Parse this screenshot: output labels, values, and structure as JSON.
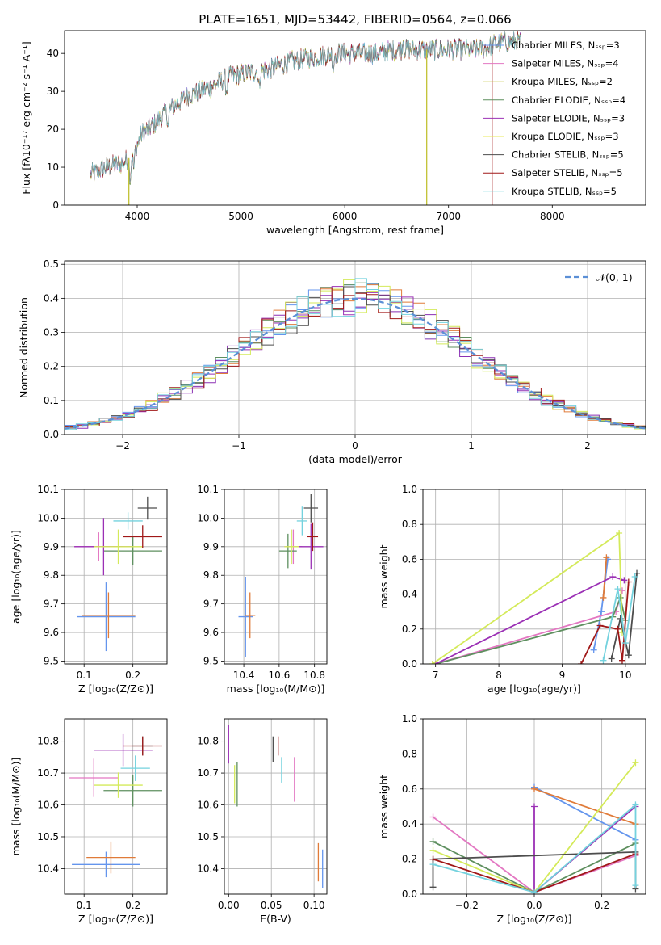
{
  "figure_title": "PLATE=1651, MJD=53442, FIBERID=0564, z=0.066",
  "colors": [
    "#6495ed",
    "#e07b39",
    "#8b2fb3",
    "#5e8f5f",
    "#9b30b5",
    "#d4ea5a",
    "#4d4d4d",
    "#a01818",
    "#74d2de"
  ],
  "chart_data": [
    {
      "id": "spectrum",
      "type": "line",
      "title": "PLATE=1651, MJD=53442, FIBERID=0564, z=0.066",
      "xlabel": "wavelength [Angstrom, rest frame]",
      "ylabel": "Flux [fλ10⁻¹⁷ erg cm⁻² s⁻¹ A⁻¹]",
      "xlim": [
        3300,
        8900
      ],
      "ylim": [
        0,
        46
      ],
      "xticks": [
        4000,
        5000,
        6000,
        7000,
        8000
      ],
      "yticks": [
        0,
        10,
        20,
        30,
        40
      ],
      "legend_position": "top-right",
      "series": [
        {
          "name": "Chabrier MILES, Nₛₛₚ=3",
          "color": "#6495ed"
        },
        {
          "name": "Salpeter MILES, Nₛₛₚ=4",
          "color": "#e377c2"
        },
        {
          "name": "Kroupa MILES, Nₛₛₚ=2",
          "color": "#bcbd22"
        },
        {
          "name": "Chabrier ELODIE, Nₛₛₚ=4",
          "color": "#5e8f5f"
        },
        {
          "name": "Salpeter ELODIE, Nₛₛₚ=3",
          "color": "#9b30b5"
        },
        {
          "name": "Kroupa ELODIE, Nₛₛₚ=3",
          "color": "#e8e85a"
        },
        {
          "name": "Chabrier STELIB, Nₛₛₚ=5",
          "color": "#4d4d4d"
        },
        {
          "name": "Salpeter STELIB, Nₛₛₚ=5",
          "color": "#a01818"
        },
        {
          "name": "Kroupa STELIB, Nₛₛₚ=5",
          "color": "#74d2de"
        }
      ],
      "continuum_points": [
        [
          3550,
          8
        ],
        [
          3700,
          10
        ],
        [
          3850,
          11
        ],
        [
          3950,
          13
        ],
        [
          4050,
          19
        ],
        [
          4150,
          21
        ],
        [
          4300,
          25
        ],
        [
          4500,
          29
        ],
        [
          4700,
          31
        ],
        [
          4900,
          34
        ],
        [
          5100,
          35
        ],
        [
          5300,
          36
        ],
        [
          5500,
          38
        ],
        [
          5700,
          39
        ],
        [
          5900,
          40
        ],
        [
          6100,
          40
        ],
        [
          6300,
          40
        ],
        [
          6500,
          41
        ],
        [
          6700,
          41
        ],
        [
          6900,
          41
        ],
        [
          7100,
          41
        ],
        [
          7300,
          41
        ],
        [
          7500,
          43
        ],
        [
          7700,
          43
        ]
      ]
    },
    {
      "id": "residuals",
      "type": "histogram",
      "xlabel": "(data-model)/error",
      "ylabel": "Normed distribution",
      "xlim": [
        -2.5,
        2.5
      ],
      "ylim": [
        0,
        0.51
      ],
      "xticks": [
        -2,
        -1,
        0,
        1,
        2
      ],
      "yticks": [
        0.0,
        0.1,
        0.2,
        0.3,
        0.4,
        0.5
      ],
      "legend": "𝒩(0, 1)",
      "legend_position": "top-right",
      "bin_width": 0.1
    },
    {
      "id": "age-vs-Z",
      "type": "errorbar",
      "xlabel": "Z [log₁₀(Z/Z⊙)]",
      "ylabel": "age  [log₁₀(age/yr)]",
      "xlim": [
        0.06,
        0.27
      ],
      "ylim": [
        9.49,
        10.1
      ],
      "xticks": [
        0.1,
        0.2
      ],
      "yticks": [
        9.5,
        9.6,
        9.7,
        9.8,
        9.9,
        10.0,
        10.1
      ],
      "points": [
        {
          "x": 0.145,
          "y": 9.655,
          "xerr": 0.06,
          "yerr": 0.12,
          "color": "#6495ed"
        },
        {
          "x": 0.15,
          "y": 9.66,
          "xerr": 0.055,
          "yerr": 0.08,
          "color": "#e07b39"
        },
        {
          "x": 0.13,
          "y": 9.9,
          "xerr": 0.05,
          "yerr": 0.05,
          "color": "#e377c2"
        },
        {
          "x": 0.2,
          "y": 9.885,
          "xerr": 0.06,
          "yerr": 0.05,
          "color": "#5e8f5f"
        },
        {
          "x": 0.14,
          "y": 9.9,
          "xerr": 0.06,
          "yerr": 0.1,
          "color": "#9b30b5"
        },
        {
          "x": 0.17,
          "y": 9.9,
          "xerr": 0.05,
          "yerr": 0.06,
          "color": "#d4ea5a"
        },
        {
          "x": 0.23,
          "y": 10.035,
          "xerr": 0.02,
          "yerr": 0.04,
          "color": "#4d4d4d"
        },
        {
          "x": 0.22,
          "y": 9.935,
          "xerr": 0.04,
          "yerr": 0.04,
          "color": "#a01818"
        },
        {
          "x": 0.19,
          "y": 9.99,
          "xerr": 0.03,
          "yerr": 0.03,
          "color": "#74d2de"
        }
      ]
    },
    {
      "id": "age-vs-mass",
      "type": "errorbar",
      "xlabel": "mass [log₁₀(M/M⊙)]",
      "ylabel": "",
      "xlim": [
        10.29,
        10.87
      ],
      "ylim": [
        9.49,
        10.1
      ],
      "xticks": [
        10.4,
        10.6,
        10.8
      ],
      "yticks": [
        9.5,
        9.6,
        9.7,
        9.8,
        9.9,
        10.0,
        10.1
      ],
      "points": [
        {
          "x": 10.41,
          "y": 9.655,
          "xerr": 0.04,
          "yerr": 0.14,
          "color": "#6495ed"
        },
        {
          "x": 10.435,
          "y": 9.66,
          "xerr": 0.03,
          "yerr": 0.08,
          "color": "#e07b39"
        },
        {
          "x": 10.68,
          "y": 9.9,
          "xerr": 0.05,
          "yerr": 0.06,
          "color": "#e377c2"
        },
        {
          "x": 10.65,
          "y": 9.885,
          "xerr": 0.05,
          "yerr": 0.06,
          "color": "#5e8f5f"
        },
        {
          "x": 10.78,
          "y": 9.9,
          "xerr": 0.07,
          "yerr": 0.08,
          "color": "#9b30b5"
        },
        {
          "x": 10.67,
          "y": 9.9,
          "xerr": 0.04,
          "yerr": 0.06,
          "color": "#d4ea5a"
        },
        {
          "x": 10.78,
          "y": 10.035,
          "xerr": 0.04,
          "yerr": 0.05,
          "color": "#4d4d4d"
        },
        {
          "x": 10.79,
          "y": 9.935,
          "xerr": 0.03,
          "yerr": 0.05,
          "color": "#a01818"
        },
        {
          "x": 10.73,
          "y": 9.99,
          "xerr": 0.03,
          "yerr": 0.05,
          "color": "#74d2de"
        }
      ]
    },
    {
      "id": "mass-weight-vs-age",
      "type": "line",
      "xlabel": "age  [log₁₀(age/yr)]",
      "ylabel": "mass weight",
      "xlim": [
        6.8,
        10.32
      ],
      "ylim": [
        0,
        1
      ],
      "xticks": [
        7,
        8,
        9,
        10
      ],
      "yticks": [
        0.0,
        0.2,
        0.4,
        0.6,
        0.8,
        1.0
      ],
      "series": [
        {
          "color": "#6495ed",
          "points": [
            [
              9.5,
              0.08
            ],
            [
              9.62,
              0.3
            ],
            [
              9.72,
              0.6
            ]
          ]
        },
        {
          "color": "#e07b39",
          "points": [
            [
              9.65,
              0.38
            ],
            [
              9.7,
              0.61
            ]
          ]
        },
        {
          "color": "#e377c2",
          "points": [
            [
              7.0,
              0.0
            ],
            [
              9.85,
              0.3
            ],
            [
              9.95,
              0.42
            ]
          ]
        },
        {
          "color": "#5e8f5f",
          "points": [
            [
              7.0,
              0.0
            ],
            [
              9.8,
              0.27
            ],
            [
              9.92,
              0.38
            ],
            [
              10.0,
              0.25
            ]
          ]
        },
        {
          "color": "#9b30b5",
          "points": [
            [
              7.0,
              0.0
            ],
            [
              9.8,
              0.5
            ],
            [
              9.98,
              0.48
            ]
          ]
        },
        {
          "color": "#d4ea5a",
          "points": [
            [
              6.95,
              0.0
            ],
            [
              9.9,
              0.75
            ],
            [
              9.95,
              0.18
            ]
          ]
        },
        {
          "color": "#4d4d4d",
          "points": [
            [
              9.78,
              0.03
            ],
            [
              9.92,
              0.26
            ],
            [
              10.05,
              0.05
            ],
            [
              10.18,
              0.52
            ]
          ]
        },
        {
          "color": "#a01818",
          "points": [
            [
              9.3,
              0.0
            ],
            [
              9.6,
              0.22
            ],
            [
              9.88,
              0.2
            ],
            [
              9.95,
              0.02
            ],
            [
              10.05,
              0.47
            ]
          ]
        },
        {
          "color": "#74d2de",
          "points": [
            [
              9.65,
              0.02
            ],
            [
              9.88,
              0.43
            ],
            [
              10.0,
              0.12
            ],
            [
              10.15,
              0.5
            ]
          ]
        }
      ]
    },
    {
      "id": "mass-vs-Z",
      "type": "errorbar",
      "xlabel": "Z [log₁₀(Z/Z⊙)]",
      "ylabel": "mass [log₁₀(M/M⊙)]",
      "xlim": [
        0.06,
        0.27
      ],
      "ylim": [
        10.32,
        10.87
      ],
      "xticks": [
        0.1,
        0.2
      ],
      "yticks": [
        10.4,
        10.5,
        10.6,
        10.7,
        10.8
      ],
      "points": [
        {
          "x": 0.145,
          "y": 10.413,
          "xerr": 0.07,
          "yerr": 0.04,
          "color": "#6495ed"
        },
        {
          "x": 0.155,
          "y": 10.435,
          "xerr": 0.05,
          "yerr": 0.05,
          "color": "#e07b39"
        },
        {
          "x": 0.12,
          "y": 10.685,
          "xerr": 0.05,
          "yerr": 0.06,
          "color": "#e377c2"
        },
        {
          "x": 0.2,
          "y": 10.645,
          "xerr": 0.06,
          "yerr": 0.05,
          "color": "#5e8f5f"
        },
        {
          "x": 0.18,
          "y": 10.772,
          "xerr": 0.06,
          "yerr": 0.05,
          "color": "#9b30b5"
        },
        {
          "x": 0.17,
          "y": 10.662,
          "xerr": 0.05,
          "yerr": 0.04,
          "color": "#d4ea5a"
        },
        {
          "x": 0.22,
          "y": 10.785,
          "xerr": 0.02,
          "yerr": 0.03,
          "color": "#4d4d4d"
        },
        {
          "x": 0.22,
          "y": 10.785,
          "xerr": 0.04,
          "yerr": 0.03,
          "color": "#a01818"
        },
        {
          "x": 0.205,
          "y": 10.715,
          "xerr": 0.03,
          "yerr": 0.04,
          "color": "#74d2de"
        }
      ]
    },
    {
      "id": "mass-vs-EBV",
      "type": "errorbar",
      "xlabel": "E(B-V)",
      "ylabel": "",
      "xlim": [
        -0.005,
        0.115
      ],
      "ylim": [
        10.32,
        10.87
      ],
      "xticks": [
        0.0,
        0.05,
        0.1
      ],
      "yticks": [
        10.4,
        10.5,
        10.6,
        10.7,
        10.8
      ],
      "points": [
        {
          "x": 0.11,
          "y": 10.4,
          "xerr": 0,
          "yerr": 0.06,
          "color": "#6495ed"
        },
        {
          "x": 0.105,
          "y": 10.42,
          "xerr": 0,
          "yerr": 0.06,
          "color": "#e07b39"
        },
        {
          "x": 0.077,
          "y": 10.68,
          "xerr": 0,
          "yerr": 0.07,
          "color": "#e377c2"
        },
        {
          "x": 0.01,
          "y": 10.665,
          "xerr": 0,
          "yerr": 0.07,
          "color": "#5e8f5f"
        },
        {
          "x": 0.0,
          "y": 10.79,
          "xerr": 0,
          "yerr": 0.06,
          "color": "#9b30b5"
        },
        {
          "x": 0.007,
          "y": 10.665,
          "xerr": 0,
          "yerr": 0.06,
          "color": "#d4ea5a"
        },
        {
          "x": 0.052,
          "y": 10.775,
          "xerr": 0,
          "yerr": 0.04,
          "color": "#4d4d4d"
        },
        {
          "x": 0.058,
          "y": 10.785,
          "xerr": 0,
          "yerr": 0.03,
          "color": "#a01818"
        },
        {
          "x": 0.062,
          "y": 10.71,
          "xerr": 0,
          "yerr": 0.04,
          "color": "#74d2de"
        }
      ]
    },
    {
      "id": "mass-weight-vs-Z",
      "type": "line",
      "xlabel": "Z [log₁₀(Z/Z⊙)]",
      "ylabel": "mass weight",
      "xlim": [
        -0.33,
        0.33
      ],
      "ylim": [
        0,
        1
      ],
      "xticks": [
        -0.2,
        0.0,
        0.2
      ],
      "yticks": [
        0.0,
        0.2,
        0.4,
        0.6,
        0.8,
        1.0
      ],
      "series": [
        {
          "color": "#6495ed",
          "points": [
            [
              0.0,
              0.61
            ],
            [
              0.3,
              0.31
            ]
          ]
        },
        {
          "color": "#e07b39",
          "points": [
            [
              0.0,
              0.6
            ],
            [
              0.3,
              0.4
            ]
          ]
        },
        {
          "color": "#e377c2",
          "points": [
            [
              -0.3,
              0.44
            ],
            [
              0.0,
              0.01
            ],
            [
              0.3,
              0.22
            ]
          ]
        },
        {
          "color": "#5e8f5f",
          "points": [
            [
              -0.3,
              0.3
            ],
            [
              0.0,
              0.01
            ],
            [
              0.3,
              0.29
            ]
          ]
        },
        {
          "color": "#9b30b5",
          "points": [
            [
              0.0,
              0.5
            ],
            [
              0.0,
              0.01
            ],
            [
              0.3,
              0.5
            ]
          ]
        },
        {
          "color": "#d4ea5a",
          "points": [
            [
              -0.3,
              0.25
            ],
            [
              0.0,
              0.01
            ],
            [
              0.3,
              0.75
            ]
          ]
        },
        {
          "color": "#4d4d4d",
          "points": [
            [
              -0.3,
              0.04
            ],
            [
              -0.3,
              0.2
            ],
            [
              0.3,
              0.24
            ],
            [
              0.3,
              0.03
            ]
          ]
        },
        {
          "color": "#a01818",
          "points": [
            [
              -0.3,
              0.2
            ],
            [
              0.0,
              0.01
            ],
            [
              0.3,
              0.23
            ]
          ]
        },
        {
          "color": "#74d2de",
          "points": [
            [
              -0.3,
              0.17
            ],
            [
              0.0,
              0.01
            ],
            [
              0.3,
              0.51
            ],
            [
              0.3,
              0.05
            ]
          ]
        }
      ]
    }
  ]
}
